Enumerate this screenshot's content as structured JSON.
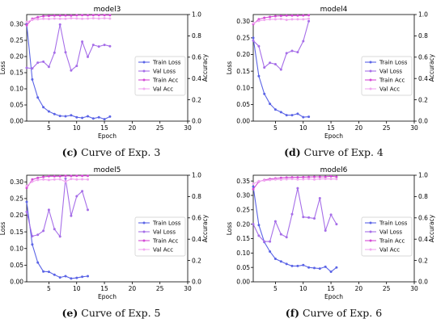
{
  "figure": {
    "panels": [
      {
        "caption_letter": "(c)",
        "caption_text": "Curve of Exp. 3"
      },
      {
        "caption_letter": "(d)",
        "caption_text": "Curve of Exp. 4"
      },
      {
        "caption_letter": "(e)",
        "caption_text": "Curve of Exp. 5"
      },
      {
        "caption_letter": "(f)",
        "caption_text": "Curve of Exp. 6"
      }
    ]
  },
  "colors": {
    "train_loss": "#5b64e6",
    "val_loss": "#a66ee8",
    "train_acc": "#d44bd6",
    "val_acc": "#f0a8f0"
  },
  "chart_data": [
    {
      "type": "line",
      "title": "model3",
      "xlabel": "Epoch",
      "ylabel": "Loss",
      "y2label": "Accuracy",
      "xlim": [
        1,
        30
      ],
      "ylim": [
        0,
        0.33
      ],
      "y2lim": [
        0,
        1.0
      ],
      "xticks": [
        5,
        10,
        15,
        20,
        25,
        30
      ],
      "yticks": [
        0.0,
        0.05,
        0.1,
        0.15,
        0.2,
        0.25,
        0.3
      ],
      "y2ticks": [
        0.0,
        0.2,
        0.4,
        0.6,
        0.8,
        1.0
      ],
      "legend": "right",
      "series": [
        {
          "name": "Train Loss",
          "axis": "left",
          "x": [
            1,
            2,
            3,
            4,
            5,
            6,
            7,
            8,
            9,
            10,
            11,
            12,
            13,
            14,
            15,
            16
          ],
          "values": [
            0.3,
            0.129,
            0.073,
            0.043,
            0.03,
            0.022,
            0.016,
            0.015,
            0.018,
            0.012,
            0.01,
            0.015,
            0.008,
            0.012,
            0.006,
            0.014
          ]
        },
        {
          "name": "Val Loss",
          "axis": "left",
          "x": [
            1,
            2,
            3,
            4,
            5,
            6,
            7,
            8,
            9,
            10,
            11,
            12,
            13,
            14,
            15,
            16
          ],
          "values": [
            0.165,
            0.163,
            0.181,
            0.184,
            0.168,
            0.212,
            0.299,
            0.213,
            0.157,
            0.171,
            0.246,
            0.199,
            0.236,
            0.231,
            0.236,
            0.232
          ]
        },
        {
          "name": "Train Acc",
          "axis": "right",
          "x": [
            1,
            2,
            3,
            4,
            5,
            6,
            7,
            8,
            9,
            10,
            11,
            12,
            13,
            14,
            15,
            16
          ],
          "values": [
            0.9,
            0.96,
            0.975,
            0.985,
            0.988,
            0.99,
            0.99,
            0.992,
            0.99,
            0.993,
            0.995,
            0.993,
            0.995,
            0.995,
            0.995,
            0.994
          ]
        },
        {
          "name": "Val Acc",
          "axis": "right",
          "x": [
            1,
            2,
            3,
            4,
            5,
            6,
            7,
            8,
            9,
            10,
            11,
            12,
            13,
            14,
            15,
            16
          ],
          "values": [
            0.93,
            0.95,
            0.955,
            0.96,
            0.958,
            0.962,
            0.96,
            0.96,
            0.965,
            0.963,
            0.96,
            0.962,
            0.965,
            0.962,
            0.965,
            0.962
          ]
        }
      ]
    },
    {
      "type": "line",
      "title": "model4",
      "xlabel": "Epoch",
      "ylabel": "Loss",
      "y2label": "Accuracy",
      "xlim": [
        1,
        30
      ],
      "ylim": [
        0,
        0.32
      ],
      "y2lim": [
        0,
        1.0
      ],
      "xticks": [
        5,
        10,
        15,
        20,
        25,
        30
      ],
      "yticks": [
        0.0,
        0.05,
        0.1,
        0.15,
        0.2,
        0.25,
        0.3
      ],
      "y2ticks": [
        0.0,
        0.2,
        0.4,
        0.6,
        0.8,
        1.0
      ],
      "legend": "right",
      "series": [
        {
          "name": "Train Loss",
          "axis": "left",
          "x": [
            1,
            2,
            3,
            4,
            5,
            6,
            7,
            8,
            9,
            10,
            11
          ],
          "values": [
            0.25,
            0.135,
            0.082,
            0.052,
            0.035,
            0.027,
            0.018,
            0.018,
            0.022,
            0.012,
            0.013
          ]
        },
        {
          "name": "Val Loss",
          "axis": "left",
          "x": [
            1,
            2,
            3,
            4,
            5,
            6,
            7,
            8,
            9,
            10,
            11
          ],
          "values": [
            0.242,
            0.225,
            0.161,
            0.175,
            0.171,
            0.155,
            0.204,
            0.211,
            0.207,
            0.24,
            0.3
          ]
        },
        {
          "name": "Train Acc",
          "axis": "right",
          "x": [
            1,
            2,
            3,
            4,
            5,
            6,
            7,
            8,
            9,
            10,
            11
          ],
          "values": [
            0.91,
            0.955,
            0.97,
            0.978,
            0.985,
            0.988,
            0.99,
            0.99,
            0.99,
            0.992,
            0.993
          ]
        },
        {
          "name": "Val Acc",
          "axis": "right",
          "x": [
            1,
            2,
            3,
            4,
            5,
            6,
            7,
            8,
            9,
            10,
            11
          ],
          "values": [
            0.92,
            0.94,
            0.95,
            0.955,
            0.955,
            0.958,
            0.95,
            0.955,
            0.955,
            0.955,
            0.96
          ]
        }
      ]
    },
    {
      "type": "line",
      "title": "model5",
      "xlabel": "Epoch",
      "ylabel": "Loss",
      "y2label": "Accuracy",
      "xlim": [
        1,
        30
      ],
      "ylim": [
        0,
        0.32
      ],
      "y2lim": [
        0,
        1.0
      ],
      "xticks": [
        5,
        10,
        15,
        20,
        25,
        30
      ],
      "yticks": [
        0.0,
        0.05,
        0.1,
        0.15,
        0.2,
        0.25,
        0.3
      ],
      "y2ticks": [
        0.0,
        0.2,
        0.4,
        0.6,
        0.8,
        1.0
      ],
      "legend": "right",
      "series": [
        {
          "name": "Train Loss",
          "axis": "left",
          "x": [
            1,
            2,
            3,
            4,
            5,
            6,
            7,
            8,
            9,
            10,
            11,
            12
          ],
          "values": [
            0.24,
            0.112,
            0.058,
            0.031,
            0.03,
            0.021,
            0.013,
            0.017,
            0.01,
            0.012,
            0.015,
            0.017
          ]
        },
        {
          "name": "Val Loss",
          "axis": "left",
          "x": [
            1,
            2,
            3,
            4,
            5,
            6,
            7,
            8,
            9,
            10,
            11,
            12
          ],
          "values": [
            0.21,
            0.137,
            0.141,
            0.153,
            0.216,
            0.158,
            0.136,
            0.31,
            0.198,
            0.257,
            0.272,
            0.216
          ]
        },
        {
          "name": "Train Acc",
          "axis": "right",
          "x": [
            1,
            2,
            3,
            4,
            5,
            6,
            7,
            8,
            9,
            10,
            11,
            12
          ],
          "values": [
            0.88,
            0.96,
            0.975,
            0.985,
            0.99,
            0.99,
            0.99,
            0.995,
            0.993,
            0.995,
            0.995,
            0.995
          ]
        },
        {
          "name": "Val Acc",
          "axis": "right",
          "x": [
            1,
            2,
            3,
            4,
            5,
            6,
            7,
            8,
            9,
            10,
            11,
            12
          ],
          "values": [
            0.9,
            0.94,
            0.955,
            0.96,
            0.955,
            0.96,
            0.962,
            0.94,
            0.965,
            0.96,
            0.962,
            0.96
          ]
        }
      ]
    },
    {
      "type": "line",
      "title": "model6",
      "xlabel": "Epoch",
      "ylabel": "Loss",
      "y2label": "Accuracy",
      "xlim": [
        1,
        30
      ],
      "ylim": [
        0,
        0.37
      ],
      "y2lim": [
        0,
        1.0
      ],
      "xticks": [
        5,
        10,
        15,
        20,
        25,
        30
      ],
      "yticks": [
        0.0,
        0.05,
        0.1,
        0.15,
        0.2,
        0.25,
        0.3,
        0.35
      ],
      "y2ticks": [
        0.0,
        0.2,
        0.4,
        0.6,
        0.8,
        1.0
      ],
      "legend": "right",
      "series": [
        {
          "name": "Train Loss",
          "axis": "left",
          "x": [
            1,
            2,
            3,
            4,
            5,
            6,
            7,
            8,
            9,
            10,
            11,
            12,
            13,
            14,
            15,
            16
          ],
          "values": [
            0.33,
            0.197,
            0.138,
            0.105,
            0.08,
            0.071,
            0.062,
            0.055,
            0.055,
            0.058,
            0.05,
            0.048,
            0.046,
            0.052,
            0.035,
            0.05
          ]
        },
        {
          "name": "Val Loss",
          "axis": "left",
          "x": [
            1,
            2,
            3,
            4,
            5,
            6,
            7,
            8,
            9,
            10,
            11,
            12,
            13,
            14,
            15,
            16
          ],
          "values": [
            0.2,
            0.16,
            0.14,
            0.14,
            0.21,
            0.165,
            0.155,
            0.235,
            0.325,
            0.225,
            0.223,
            0.22,
            0.29,
            0.178,
            0.233,
            0.2
          ]
        },
        {
          "name": "Train Acc",
          "axis": "right",
          "x": [
            1,
            2,
            3,
            4,
            5,
            6,
            7,
            8,
            9,
            10,
            11,
            12,
            13,
            14,
            15,
            16
          ],
          "values": [
            0.87,
            0.94,
            0.955,
            0.965,
            0.97,
            0.975,
            0.978,
            0.98,
            0.98,
            0.982,
            0.983,
            0.985,
            0.985,
            0.985,
            0.99,
            0.985
          ]
        },
        {
          "name": "Val Acc",
          "axis": "right",
          "x": [
            1,
            2,
            3,
            4,
            5,
            6,
            7,
            8,
            9,
            10,
            11,
            12,
            13,
            14,
            15,
            16
          ],
          "values": [
            0.92,
            0.945,
            0.95,
            0.955,
            0.96,
            0.958,
            0.962,
            0.965,
            0.96,
            0.962,
            0.965,
            0.96,
            0.965,
            0.966,
            0.965,
            0.964
          ]
        }
      ]
    }
  ]
}
